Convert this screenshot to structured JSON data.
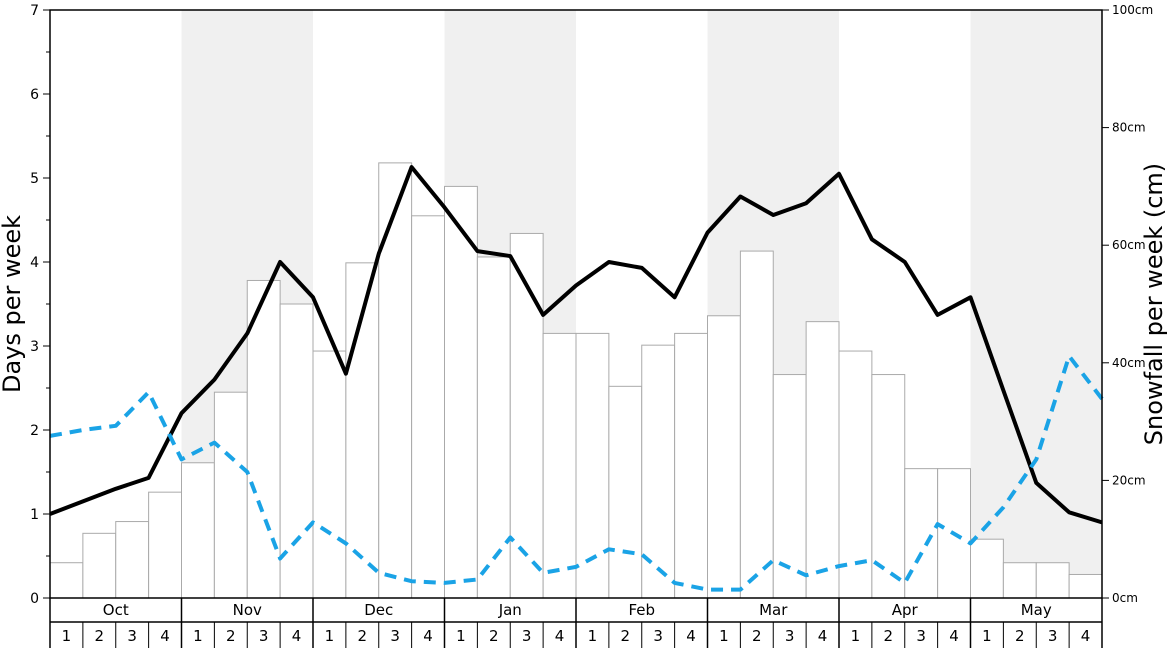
{
  "chart_data": {
    "type": "bar+line",
    "left_axis": {
      "label": "Days per week",
      "ylim": [
        0,
        7
      ],
      "ticks": [
        "0",
        "1",
        "2",
        "3",
        "4",
        "5",
        "6",
        "7"
      ],
      "tick_values": [
        0,
        1,
        2,
        3,
        4,
        5,
        6,
        7
      ],
      "minor_ticks": [
        0.5,
        1.5,
        2.5,
        3.5,
        4.5,
        5.5,
        6.5
      ]
    },
    "right_axis": {
      "label": "Snowfall per week (cm)",
      "ylim": [
        0,
        100
      ],
      "ticks": [
        "0cm",
        "20cm",
        "40cm",
        "60cm",
        "80cm",
        "100cm"
      ],
      "tick_values": [
        0,
        20,
        40,
        60,
        80,
        100
      ]
    },
    "months": [
      "Oct",
      "Nov",
      "Dec",
      "Jan",
      "Feb",
      "Mar",
      "Apr",
      "May"
    ],
    "weeks": [
      "1",
      "2",
      "3",
      "4"
    ],
    "shaded_months": [
      "Nov",
      "Jan",
      "Mar",
      "May"
    ],
    "series": [
      {
        "type": "bar",
        "axis": "right",
        "color": "#ffffff",
        "stroke": "#aaaaaa",
        "values": [
          6,
          11,
          13,
          18,
          23,
          35,
          54,
          50,
          42,
          57,
          74,
          65,
          70,
          58,
          62,
          45,
          45,
          36,
          43,
          45,
          48,
          59,
          38,
          47,
          42,
          38,
          22,
          22,
          10,
          6,
          6,
          4
        ]
      },
      {
        "type": "line",
        "axis": "left",
        "color": "#000000",
        "style": "solid",
        "values": [
          1.0,
          1.15,
          1.3,
          1.43,
          2.2,
          2.6,
          3.15,
          4.0,
          3.58,
          2.67,
          4.1,
          5.13,
          4.65,
          4.13,
          4.07,
          3.37,
          3.72,
          4.0,
          3.93,
          3.58,
          4.35,
          4.78,
          4.56,
          4.7,
          5.05,
          4.27,
          4.0,
          3.37,
          3.58,
          2.47,
          1.37,
          1.02,
          0.9
        ]
      },
      {
        "type": "line",
        "axis": "left",
        "color": "#1aa3e6",
        "style": "dashed",
        "values": [
          1.93,
          2.0,
          2.05,
          2.45,
          1.65,
          1.85,
          1.5,
          0.47,
          0.9,
          0.65,
          0.3,
          0.2,
          0.18,
          0.22,
          0.72,
          0.3,
          0.37,
          0.58,
          0.52,
          0.18,
          0.1,
          0.1,
          0.45,
          0.27,
          0.38,
          0.45,
          0.18,
          0.88,
          0.65,
          1.08,
          1.65,
          2.88,
          2.37
        ]
      }
    ]
  }
}
